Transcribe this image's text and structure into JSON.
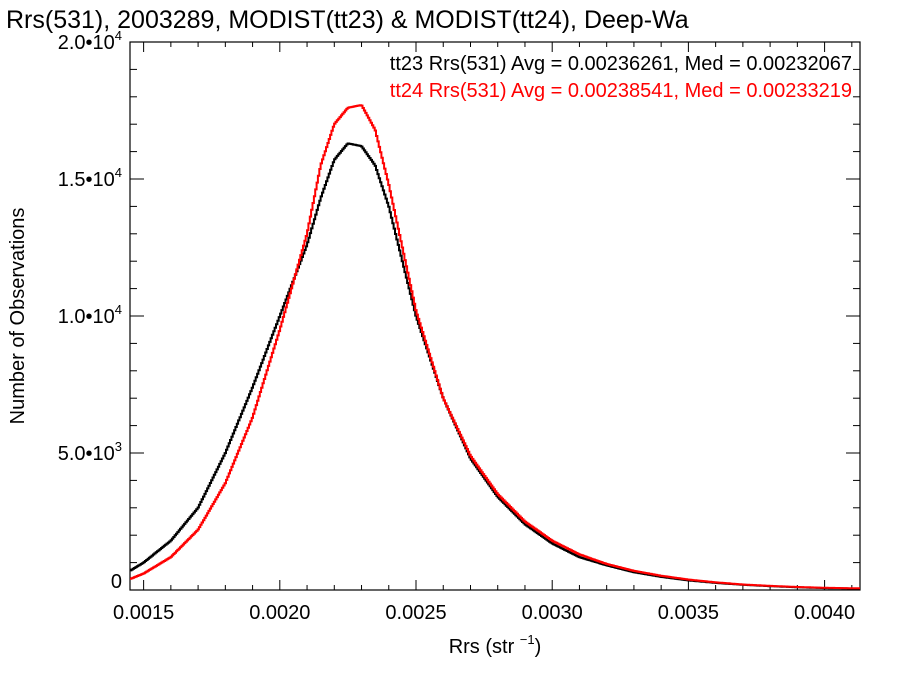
{
  "chart_data": {
    "type": "line",
    "title": "Rrs(531), 2003289, MODIST(tt23) & MODIST(tt24), Deep-Wa",
    "xlabel": "Rrs (str",
    "xlabel_sup": "−1",
    "xlabel_close": ")",
    "ylabel": "Number of Observations",
    "xlim": [
      0.00145,
      0.00413
    ],
    "ylim": [
      0,
      20000
    ],
    "x_ticks": [
      {
        "value": 0.0015,
        "label": "0.0015"
      },
      {
        "value": 0.002,
        "label": "0.0020"
      },
      {
        "value": 0.0025,
        "label": "0.0025"
      },
      {
        "value": 0.003,
        "label": "0.0030"
      },
      {
        "value": 0.0035,
        "label": "0.0035"
      },
      {
        "value": 0.004,
        "label": "0.0040"
      }
    ],
    "y_ticks": [
      {
        "value": 0,
        "mant": "0",
        "exp": ""
      },
      {
        "value": 5000,
        "mant": "5.0•10",
        "exp": "3"
      },
      {
        "value": 10000,
        "mant": "1.0•10",
        "exp": "4"
      },
      {
        "value": 15000,
        "mant": "1.5•10",
        "exp": "4"
      },
      {
        "value": 20000,
        "mant": "2.0•10",
        "exp": "4"
      }
    ],
    "series": [
      {
        "name": "tt23",
        "color": "#000000",
        "legend": "tt23 Rrs(531) Avg = 0.00236261, Med = 0.00232067",
        "x": [
          0.00145,
          0.0015,
          0.0016,
          0.0017,
          0.0018,
          0.0019,
          0.002,
          0.0021,
          0.00215,
          0.0022,
          0.00225,
          0.0023,
          0.00235,
          0.0024,
          0.0025,
          0.0026,
          0.0027,
          0.0028,
          0.0029,
          0.003,
          0.0031,
          0.0032,
          0.0033,
          0.0034,
          0.0035,
          0.0036,
          0.0037,
          0.0038,
          0.0039,
          0.004,
          0.00413
        ],
        "y": [
          700,
          1000,
          1800,
          3000,
          5000,
          7400,
          10000,
          12600,
          14300,
          15700,
          16300,
          16200,
          15500,
          14000,
          10000,
          7000,
          4800,
          3400,
          2400,
          1700,
          1200,
          900,
          650,
          480,
          350,
          260,
          190,
          140,
          100,
          70,
          50
        ]
      },
      {
        "name": "tt24",
        "color": "#ff0000",
        "legend": "tt24 Rrs(531) Avg = 0.00238541, Med = 0.00233219",
        "x": [
          0.00145,
          0.0015,
          0.0016,
          0.0017,
          0.0018,
          0.0019,
          0.002,
          0.0021,
          0.00215,
          0.0022,
          0.00225,
          0.0023,
          0.00235,
          0.0024,
          0.0025,
          0.0026,
          0.0027,
          0.0028,
          0.0029,
          0.003,
          0.0031,
          0.0032,
          0.0033,
          0.0034,
          0.0035,
          0.0036,
          0.0037,
          0.0038,
          0.0039,
          0.004,
          0.00413
        ],
        "y": [
          400,
          600,
          1200,
          2200,
          3900,
          6300,
          9500,
          13000,
          15500,
          17000,
          17600,
          17700,
          16800,
          14800,
          10200,
          7000,
          4900,
          3500,
          2500,
          1800,
          1300,
          950,
          700,
          520,
          380,
          280,
          200,
          150,
          110,
          80,
          60
        ]
      }
    ]
  }
}
